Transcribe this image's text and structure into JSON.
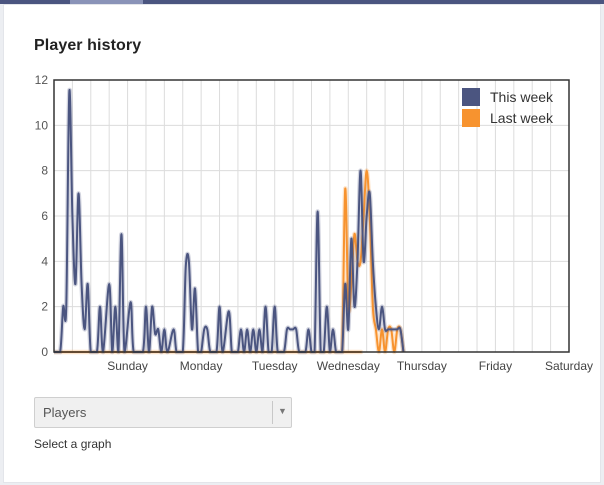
{
  "card": {
    "title": "Player history"
  },
  "controls": {
    "graph_select_value": "Players",
    "graph_select_hint": "Select a graph"
  },
  "chart_data": {
    "type": "line",
    "title": "Player history",
    "xlabel": "",
    "ylabel": "",
    "ylim": [
      0,
      12
    ],
    "yticks": [
      0,
      2,
      4,
      6,
      8,
      10,
      12
    ],
    "xlim": [
      0,
      168
    ],
    "xticks": [
      {
        "x": 24,
        "label": "Sunday"
      },
      {
        "x": 48,
        "label": "Monday"
      },
      {
        "x": 72,
        "label": "Tuesday"
      },
      {
        "x": 96,
        "label": "Wednesday"
      },
      {
        "x": 120,
        "label": "Thursday"
      },
      {
        "x": 144,
        "label": "Friday"
      },
      {
        "x": 168,
        "label": "Saturday"
      }
    ],
    "grid": true,
    "legend": "top-right",
    "series": [
      {
        "name": "This week",
        "color": "#4b5580",
        "points": [
          [
            0,
            0
          ],
          [
            2,
            0
          ],
          [
            3,
            2
          ],
          [
            4,
            2
          ],
          [
            5,
            11.5
          ],
          [
            6,
            6
          ],
          [
            7,
            3
          ],
          [
            8,
            7
          ],
          [
            9,
            3
          ],
          [
            10,
            1
          ],
          [
            11,
            3
          ],
          [
            12,
            0
          ],
          [
            14,
            0
          ],
          [
            15,
            2
          ],
          [
            16,
            0
          ],
          [
            18,
            3
          ],
          [
            19,
            0
          ],
          [
            20,
            2
          ],
          [
            21,
            0
          ],
          [
            22,
            5.2
          ],
          [
            23,
            0
          ],
          [
            25,
            2.2
          ],
          [
            26,
            0
          ],
          [
            29,
            0
          ],
          [
            30,
            2
          ],
          [
            31,
            0
          ],
          [
            32,
            2
          ],
          [
            33,
            0.8
          ],
          [
            34,
            1
          ],
          [
            35,
            0
          ],
          [
            36,
            1
          ],
          [
            37,
            0
          ],
          [
            39,
            1
          ],
          [
            40,
            0
          ],
          [
            42,
            0
          ],
          [
            43,
            3.8
          ],
          [
            44,
            4
          ],
          [
            45,
            1
          ],
          [
            46,
            2.8
          ],
          [
            47,
            0
          ],
          [
            48,
            0
          ],
          [
            49,
            1
          ],
          [
            50,
            1
          ],
          [
            51,
            0
          ],
          [
            53,
            0
          ],
          [
            54,
            2
          ],
          [
            55,
            0
          ],
          [
            57,
            1.8
          ],
          [
            58,
            0
          ],
          [
            59,
            0
          ],
          [
            60,
            0
          ],
          [
            61,
            1
          ],
          [
            62,
            0
          ],
          [
            63,
            1
          ],
          [
            64,
            0
          ],
          [
            65,
            1
          ],
          [
            66,
            0
          ],
          [
            67,
            1
          ],
          [
            68,
            0
          ],
          [
            69,
            2
          ],
          [
            70,
            0
          ],
          [
            71,
            0
          ],
          [
            72,
            2
          ],
          [
            73,
            0
          ],
          [
            75,
            0
          ],
          [
            76,
            1
          ],
          [
            77,
            1
          ],
          [
            78,
            1
          ],
          [
            79,
            1
          ],
          [
            80,
            0
          ],
          [
            82,
            0
          ],
          [
            83,
            1
          ],
          [
            84,
            0
          ],
          [
            85,
            0
          ],
          [
            86,
            6.2
          ],
          [
            87,
            0
          ],
          [
            88,
            0
          ],
          [
            89,
            2
          ],
          [
            90,
            0
          ],
          [
            91,
            1
          ],
          [
            92,
            0
          ],
          [
            93,
            0
          ],
          [
            94,
            0
          ],
          [
            95,
            3
          ],
          [
            96,
            1
          ],
          [
            97,
            5
          ],
          [
            98,
            2
          ],
          [
            99,
            4
          ],
          [
            100,
            8
          ],
          [
            101,
            4
          ],
          [
            102,
            6
          ],
          [
            103,
            7
          ],
          [
            104,
            4
          ],
          [
            105,
            2
          ],
          [
            106,
            1
          ],
          [
            107,
            2
          ],
          [
            108,
            1
          ],
          [
            109,
            1
          ],
          [
            110,
            1
          ],
          [
            111,
            1
          ],
          [
            112,
            1
          ],
          [
            113,
            1
          ],
          [
            114,
            0
          ]
        ]
      },
      {
        "name": "Last week",
        "color": "#f7932f",
        "points": [
          [
            0,
            0
          ],
          [
            93,
            0
          ],
          [
            94,
            0
          ],
          [
            95,
            7.2
          ],
          [
            96,
            2
          ],
          [
            97,
            3
          ],
          [
            98,
            5.2
          ],
          [
            99,
            4
          ],
          [
            100,
            4
          ],
          [
            101,
            6
          ],
          [
            102,
            8
          ],
          [
            103,
            6
          ],
          [
            104,
            2
          ],
          [
            105,
            1
          ],
          [
            106,
            0
          ],
          [
            107,
            1
          ],
          [
            108,
            0
          ],
          [
            109,
            1
          ],
          [
            110,
            1
          ],
          [
            111,
            0
          ],
          [
            112,
            1
          ],
          [
            113,
            1
          ],
          [
            114,
            0
          ]
        ]
      }
    ]
  }
}
